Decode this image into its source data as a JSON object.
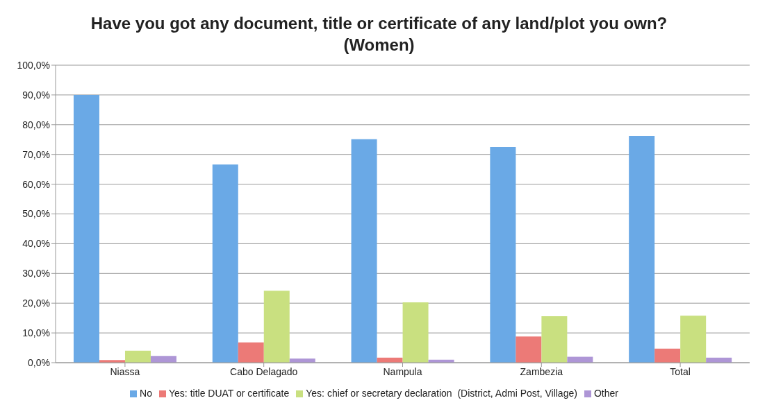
{
  "chart_data": {
    "type": "bar",
    "title": "Have you got any document, title or certificate of any land/plot you own? (Women)",
    "categories": [
      "Niassa",
      "Cabo Delagado",
      "Nampula",
      "Zambezia",
      "Total"
    ],
    "series": [
      {
        "name": "No",
        "color": "#6aa9e6",
        "values": [
          90.0,
          66.6,
          75.1,
          72.5,
          76.2
        ]
      },
      {
        "name": "Yes: title DUAT or certificate",
        "color": "#ec7a77",
        "values": [
          0.9,
          6.8,
          1.7,
          8.8,
          4.7
        ]
      },
      {
        "name": "Yes: chief or secretary declaration  (District, Admi Post, Village)",
        "color": "#c9e080",
        "values": [
          4.0,
          24.2,
          20.3,
          15.6,
          15.8
        ]
      },
      {
        "name": "Other",
        "color": "#ae96d6",
        "values": [
          2.3,
          1.4,
          1.0,
          2.0,
          1.7
        ]
      }
    ],
    "ylim": [
      0,
      100
    ],
    "yticks": [
      {
        "value": 0,
        "label": "0,0%"
      },
      {
        "value": 10,
        "label": "10,0%"
      },
      {
        "value": 20,
        "label": "20,0%"
      },
      {
        "value": 30,
        "label": "30,0%"
      },
      {
        "value": 40,
        "label": "40,0%"
      },
      {
        "value": 50,
        "label": "50,0%"
      },
      {
        "value": 60,
        "label": "60,0%"
      },
      {
        "value": 70,
        "label": "70,0%"
      },
      {
        "value": 80,
        "label": "80,0%"
      },
      {
        "value": 90,
        "label": "90,0%"
      },
      {
        "value": 100,
        "label": "100,0%"
      }
    ],
    "grid": "y",
    "legend": "bottom"
  }
}
